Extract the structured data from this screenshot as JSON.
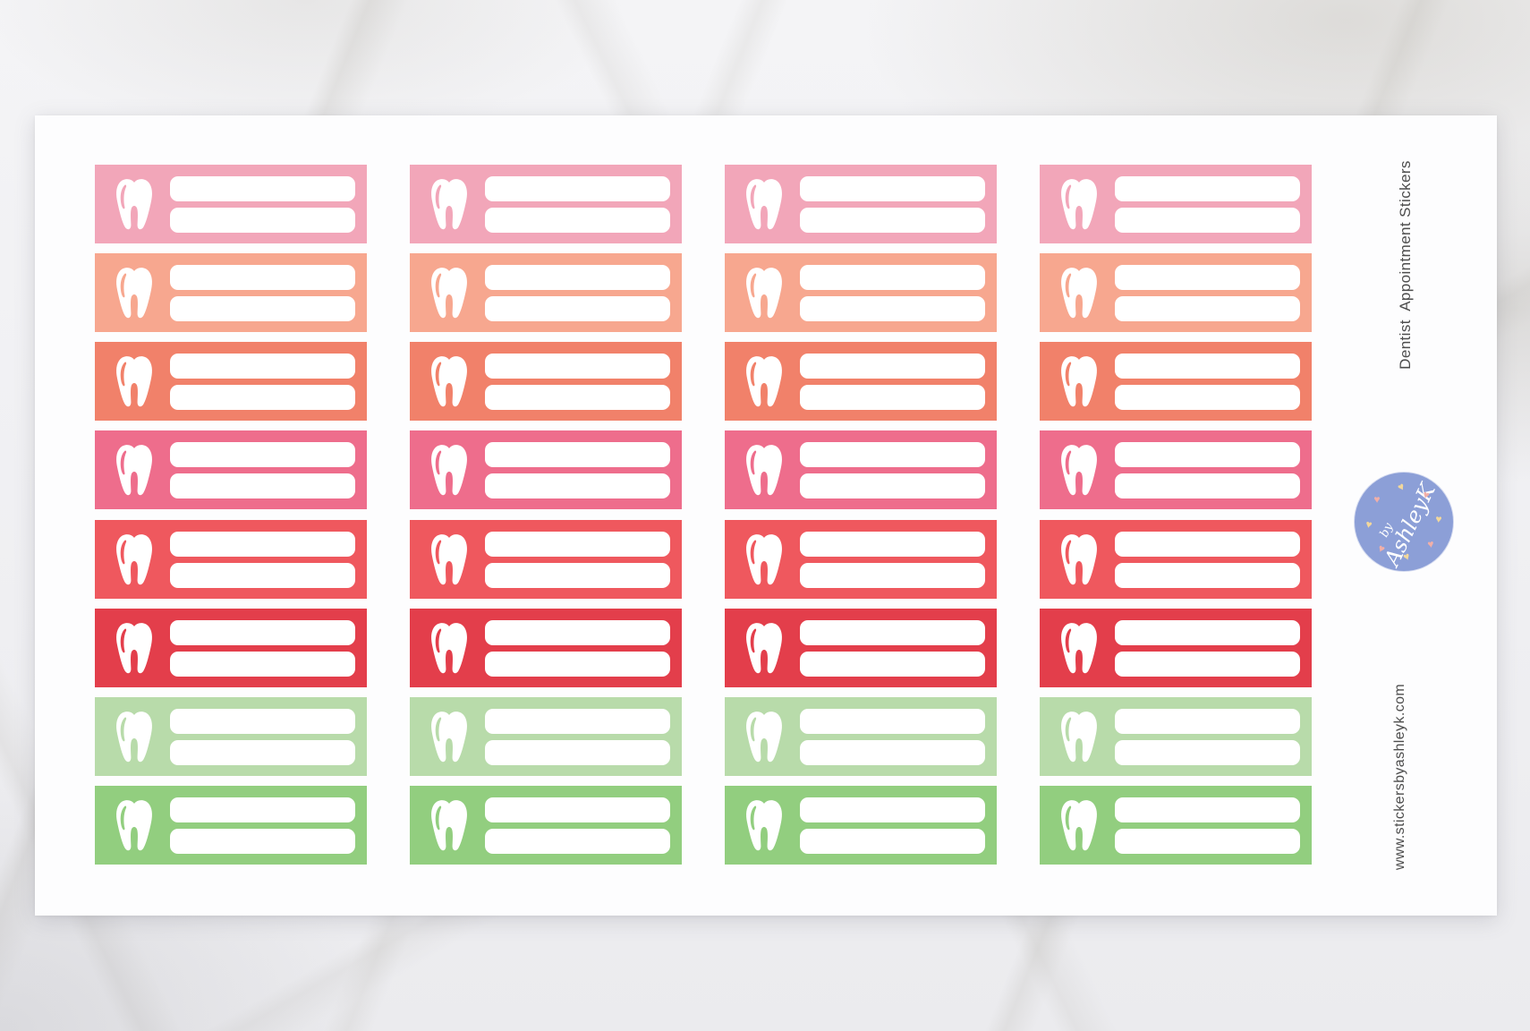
{
  "photo": {
    "background": "white-marble",
    "sheet_color": "#fdfdfe"
  },
  "sheet": {
    "title_vertical": "Dentist  Appointment Stickers",
    "website_vertical": "www.stickersbyashleyk.com",
    "text_color": "#4d4d4d"
  },
  "stickers": {
    "columns": 4,
    "writing_lines_per_sticker": 2,
    "line_color": "#ffffff",
    "icon": "tooth-icon",
    "rows": [
      {
        "name": "pink",
        "color": "#f2a6b9"
      },
      {
        "name": "salmon",
        "color": "#f7a78f"
      },
      {
        "name": "coral",
        "color": "#f1816a"
      },
      {
        "name": "rose",
        "color": "#ee6d8c"
      },
      {
        "name": "red-coral",
        "color": "#ef585e"
      },
      {
        "name": "red",
        "color": "#e33e4b"
      },
      {
        "name": "light-green",
        "color": "#b8dbaa"
      },
      {
        "name": "green",
        "color": "#92ce7f"
      }
    ]
  },
  "badge": {
    "by_label": "by",
    "name_label": "AshleyK",
    "circle_color": "#8c9fd7",
    "text_color": "#ffffff",
    "heart_colors": [
      "#f3d89b",
      "#f1afa8"
    ]
  }
}
